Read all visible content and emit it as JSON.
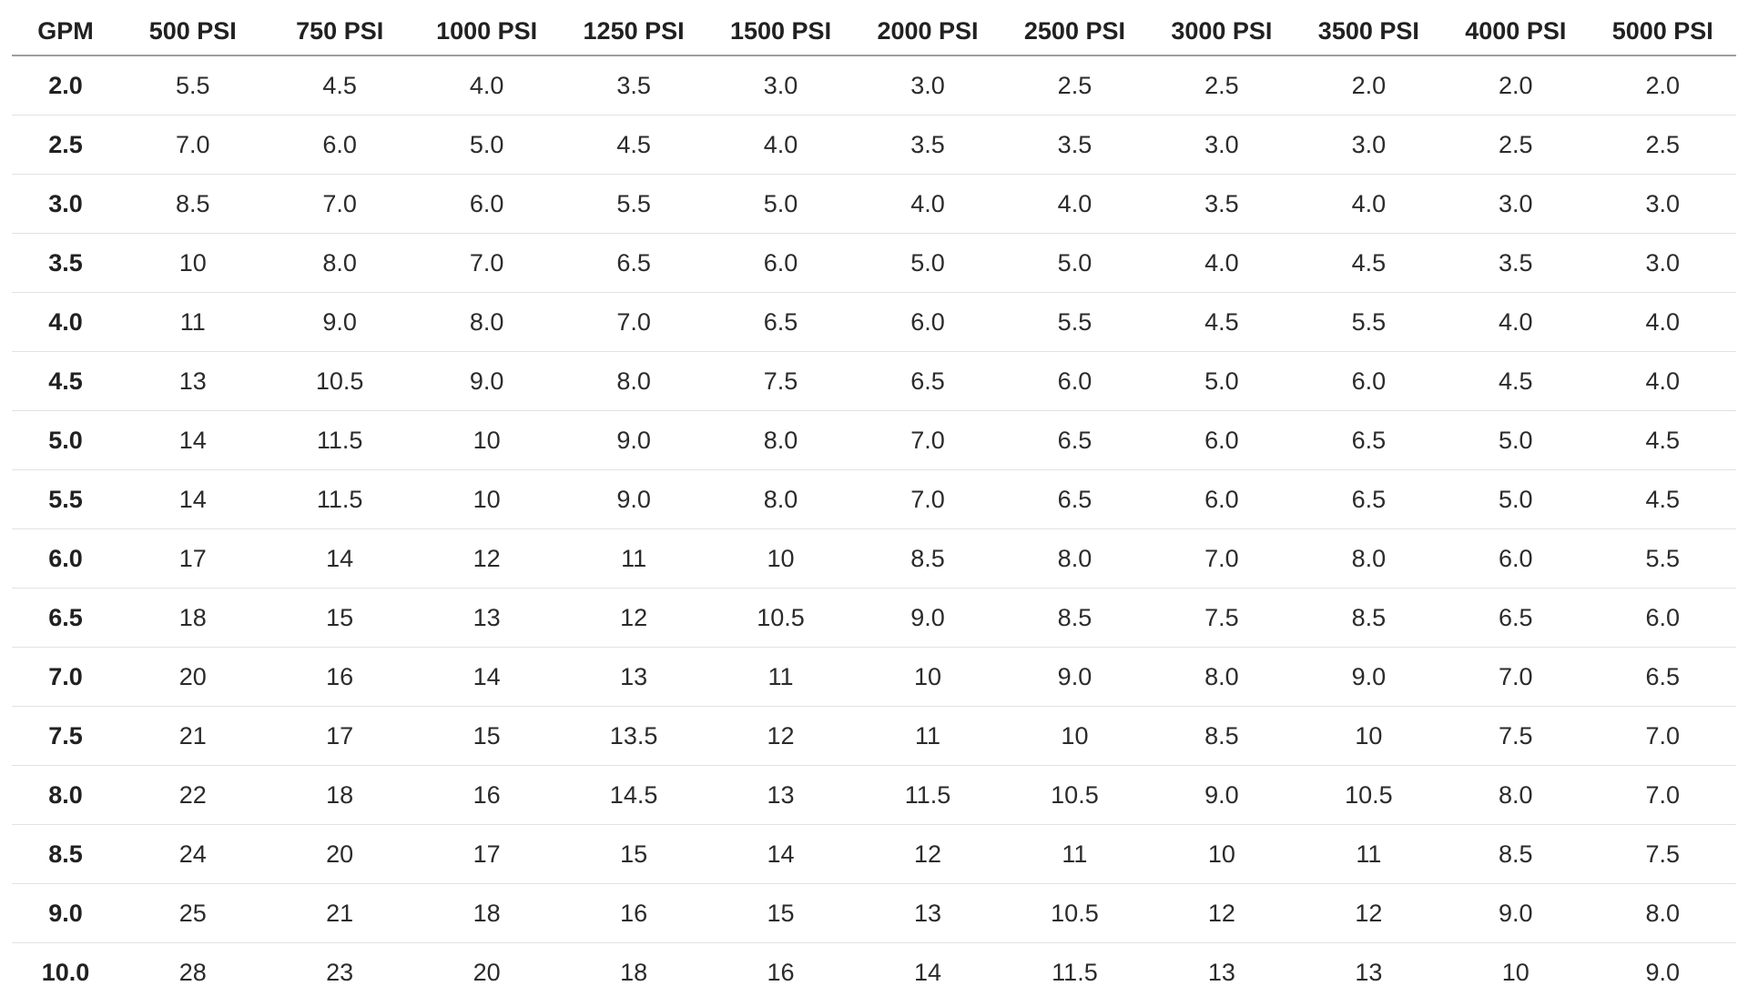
{
  "chart_data": {
    "type": "table",
    "columns": [
      "GPM",
      "500 PSI",
      "750 PSI",
      "1000 PSI",
      "1250 PSI",
      "1500 PSI",
      "2000 PSI",
      "2500 PSI",
      "3000 PSI",
      "3500 PSI",
      "4000 PSI",
      "5000 PSI"
    ],
    "rows": [
      [
        "2.0",
        "5.5",
        "4.5",
        "4.0",
        "3.5",
        "3.0",
        "3.0",
        "2.5",
        "2.5",
        "2.0",
        "2.0",
        "2.0"
      ],
      [
        "2.5",
        "7.0",
        "6.0",
        "5.0",
        "4.5",
        "4.0",
        "3.5",
        "3.5",
        "3.0",
        "3.0",
        "2.5",
        "2.5"
      ],
      [
        "3.0",
        "8.5",
        "7.0",
        "6.0",
        "5.5",
        "5.0",
        "4.0",
        "4.0",
        "3.5",
        "4.0",
        "3.0",
        "3.0"
      ],
      [
        "3.5",
        "10",
        "8.0",
        "7.0",
        "6.5",
        "6.0",
        "5.0",
        "5.0",
        "4.0",
        "4.5",
        "3.5",
        "3.0"
      ],
      [
        "4.0",
        "11",
        "9.0",
        "8.0",
        "7.0",
        "6.5",
        "6.0",
        "5.5",
        "4.5",
        "5.5",
        "4.0",
        "4.0"
      ],
      [
        "4.5",
        "13",
        "10.5",
        "9.0",
        "8.0",
        "7.5",
        "6.5",
        "6.0",
        "5.0",
        "6.0",
        "4.5",
        "4.0"
      ],
      [
        "5.0",
        "14",
        "11.5",
        "10",
        "9.0",
        "8.0",
        "7.0",
        "6.5",
        "6.0",
        "6.5",
        "5.0",
        "4.5"
      ],
      [
        "5.5",
        "14",
        "11.5",
        "10",
        "9.0",
        "8.0",
        "7.0",
        "6.5",
        "6.0",
        "6.5",
        "5.0",
        "4.5"
      ],
      [
        "6.0",
        "17",
        "14",
        "12",
        "11",
        "10",
        "8.5",
        "8.0",
        "7.0",
        "8.0",
        "6.0",
        "5.5"
      ],
      [
        "6.5",
        "18",
        "15",
        "13",
        "12",
        "10.5",
        "9.0",
        "8.5",
        "7.5",
        "8.5",
        "6.5",
        "6.0"
      ],
      [
        "7.0",
        "20",
        "16",
        "14",
        "13",
        "11",
        "10",
        "9.0",
        "8.0",
        "9.0",
        "7.0",
        "6.5"
      ],
      [
        "7.5",
        "21",
        "17",
        "15",
        "13.5",
        "12",
        "11",
        "10",
        "8.5",
        "10",
        "7.5",
        "7.0"
      ],
      [
        "8.0",
        "22",
        "18",
        "16",
        "14.5",
        "13",
        "11.5",
        "10.5",
        "9.0",
        "10.5",
        "8.0",
        "7.0"
      ],
      [
        "8.5",
        "24",
        "20",
        "17",
        "15",
        "14",
        "12",
        "11",
        "10",
        "11",
        "8.5",
        "7.5"
      ],
      [
        "9.0",
        "25",
        "21",
        "18",
        "16",
        "15",
        "13",
        "10.5",
        "12",
        "12",
        "9.0",
        "8.0"
      ],
      [
        "10.0",
        "28",
        "23",
        "20",
        "18",
        "16",
        "14",
        "11.5",
        "13",
        "13",
        "10",
        "9.0"
      ]
    ],
    "title": "",
    "legend": "none",
    "grid": "horizontal-row-separators"
  },
  "style": {
    "background_color": "#ffffff",
    "text_color": "#212121",
    "header_rule_color": "#9e9e9e",
    "row_rule_color": "#e2e2e2"
  }
}
